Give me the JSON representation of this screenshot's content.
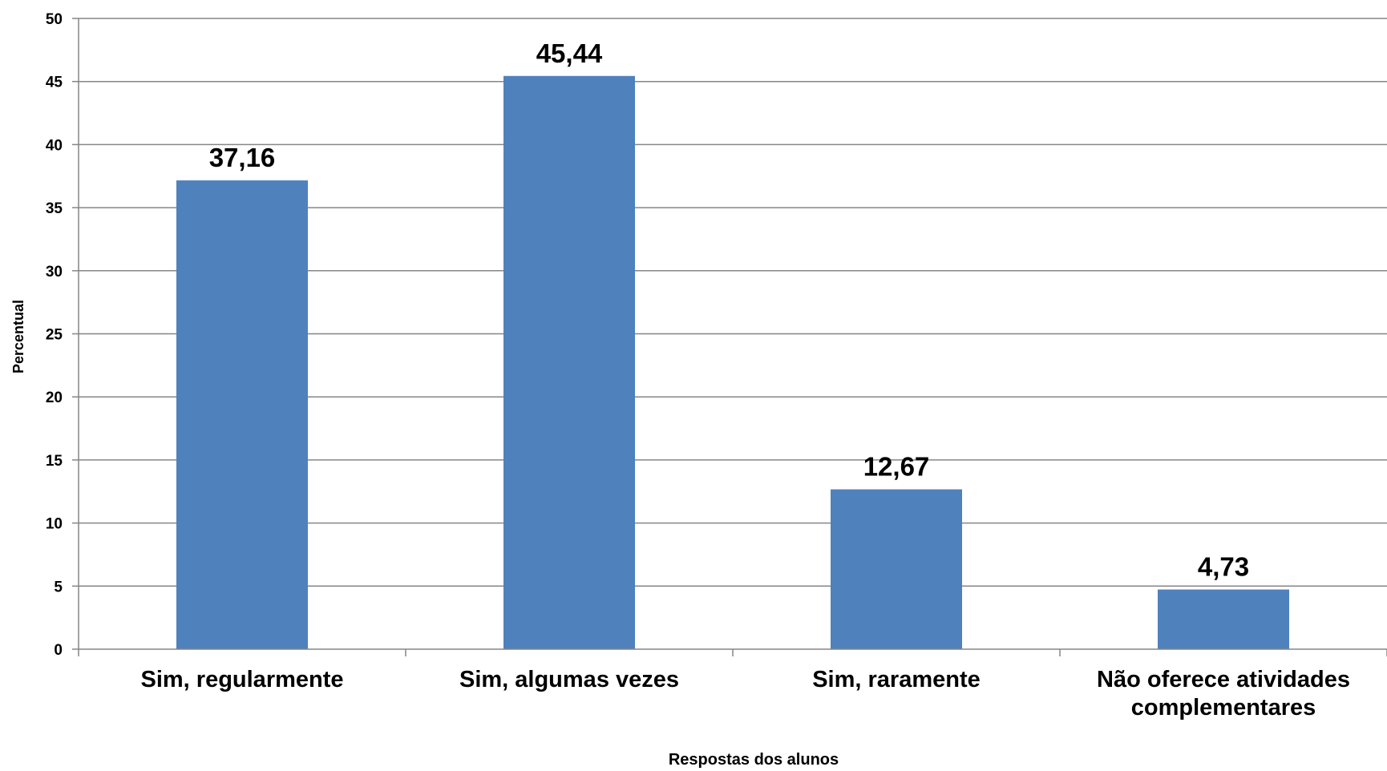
{
  "chart_data": {
    "type": "bar",
    "categories": [
      [
        "Sim, regularmente"
      ],
      [
        "Sim, algumas vezes"
      ],
      [
        "Sim, raramente"
      ],
      [
        "Não oferece atividades",
        "complementares"
      ]
    ],
    "values": [
      37.16,
      45.44,
      12.67,
      4.73
    ],
    "data_labels": [
      "37,16",
      "45,44",
      "12,67",
      "4,73"
    ],
    "title": "",
    "xlabel": "Respostas dos alunos",
    "ylabel": "Percentual",
    "ylim": [
      0,
      50
    ],
    "yticks": [
      0,
      5,
      10,
      15,
      20,
      25,
      30,
      35,
      40,
      45,
      50
    ],
    "grid": true,
    "legend": "none",
    "colors": {
      "bar": "#4F81BD",
      "grid": "#868686",
      "axis": "#868686"
    }
  }
}
